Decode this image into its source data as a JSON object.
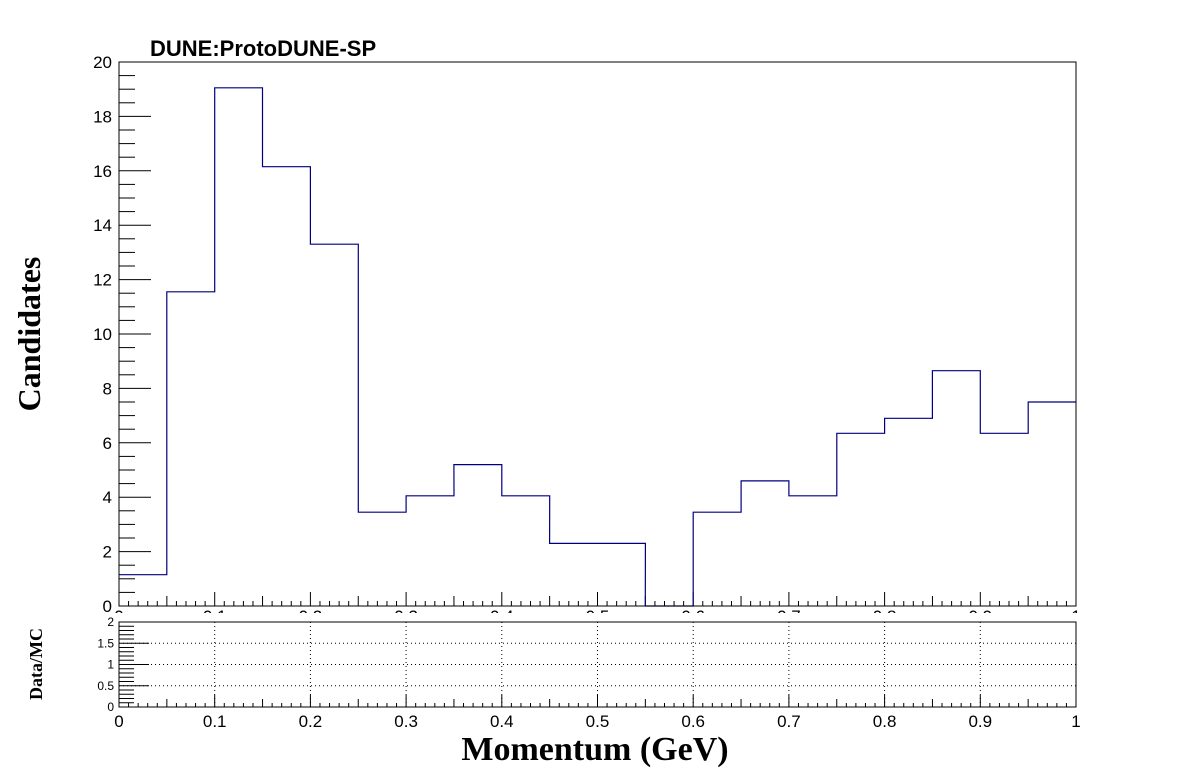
{
  "chart_data": [
    {
      "type": "bar",
      "style": "step-histogram",
      "title": "DUNE:ProtoDUNE-SP",
      "ylabel": "Candidates",
      "xlabel": "",
      "xlim": [
        0,
        1
      ],
      "ylim": [
        0,
        20
      ],
      "bin_width": 0.05,
      "x": [
        0.025,
        0.075,
        0.125,
        0.175,
        0.225,
        0.275,
        0.325,
        0.375,
        0.425,
        0.475,
        0.525,
        0.575,
        0.625,
        0.675,
        0.725,
        0.775,
        0.825,
        0.875,
        0.925,
        0.975
      ],
      "values": [
        1.15,
        11.55,
        19.05,
        16.15,
        13.3,
        3.45,
        4.05,
        5.2,
        4.05,
        2.3,
        2.3,
        0,
        3.45,
        4.6,
        4.05,
        6.35,
        6.9,
        8.65,
        6.35,
        7.5
      ],
      "yticks": [
        "0",
        "2",
        "4",
        "6",
        "8",
        "10",
        "12",
        "14",
        "16",
        "18",
        "20"
      ],
      "xticks": [
        "0",
        "0.1",
        "0.2",
        "0.3",
        "0.4",
        "0.5",
        "0.6",
        "0.7",
        "0.8",
        "0.9",
        "1"
      ],
      "line_color": "#000080",
      "grid": false
    },
    {
      "type": "line",
      "title": "",
      "ylabel": "Data/MC",
      "xlabel": "Momentum (GeV)",
      "xlim": [
        0,
        1
      ],
      "ylim": [
        0,
        2
      ],
      "series": [],
      "yticks": [
        "0",
        "0.5",
        "1",
        "1.5",
        "2"
      ],
      "xticks": [
        "0",
        "0.1",
        "0.2",
        "0.3",
        "0.4",
        "0.5",
        "0.6",
        "0.7",
        "0.8",
        "0.9",
        "1"
      ],
      "grid": true
    }
  ]
}
